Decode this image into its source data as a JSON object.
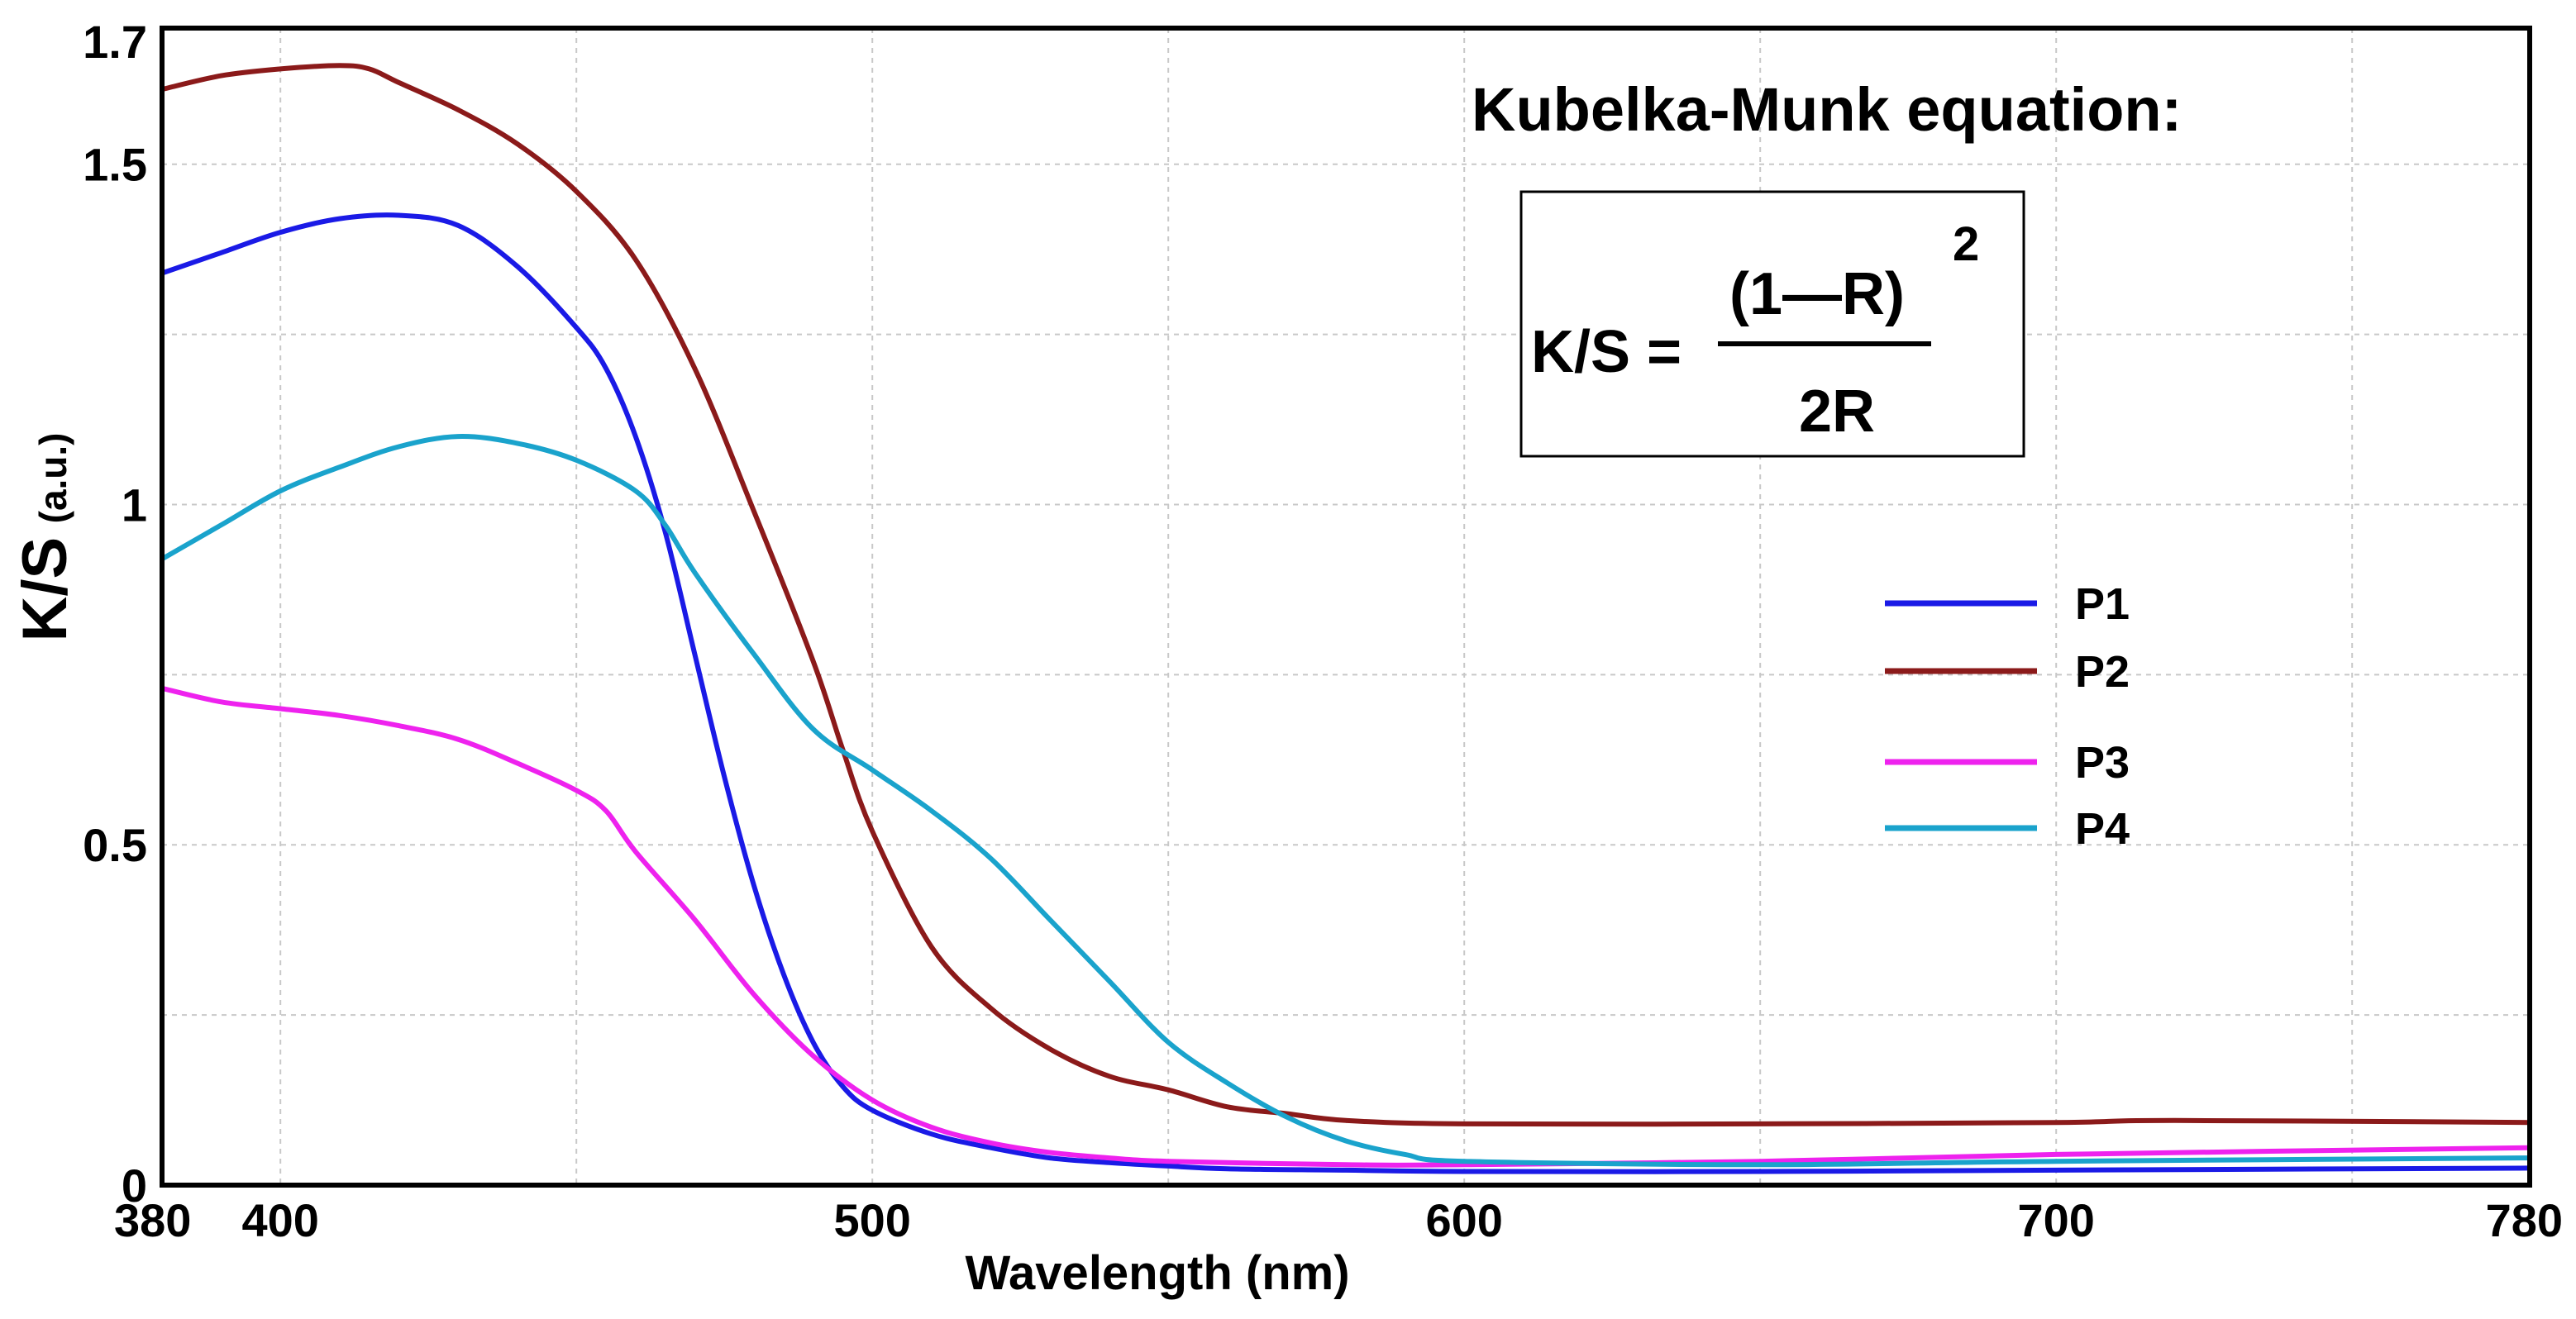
{
  "chart_data": {
    "type": "line",
    "xlabel": "Wavelength (nm)",
    "ylabel": "K/S",
    "ylabel_unit": "(a.u.)",
    "xlim": [
      380,
      780
    ],
    "ylim": [
      0,
      1.7
    ],
    "x_ticks": [
      380,
      400,
      500,
      600,
      700,
      780
    ],
    "y_ticks": [
      {
        "value": 0,
        "label": "0"
      },
      {
        "value": 0.5,
        "label": "0.5"
      },
      {
        "value": 1,
        "label": "1"
      },
      {
        "value": 1.5,
        "label": "1.5"
      },
      {
        "value": 1.7,
        "label": "1.7"
      }
    ],
    "grid": true,
    "legend_position": "right",
    "series": [
      {
        "name": "P1",
        "color": "#1a1ae6",
        "points": [
          [
            380,
            1.34
          ],
          [
            390,
            1.37
          ],
          [
            400,
            1.4
          ],
          [
            410,
            1.42
          ],
          [
            420,
            1.425
          ],
          [
            430,
            1.41
          ],
          [
            440,
            1.35
          ],
          [
            450,
            1.26
          ],
          [
            455,
            1.2
          ],
          [
            460,
            1.1
          ],
          [
            465,
            0.96
          ],
          [
            470,
            0.78
          ],
          [
            475,
            0.6
          ],
          [
            480,
            0.44
          ],
          [
            485,
            0.31
          ],
          [
            490,
            0.21
          ],
          [
            495,
            0.145
          ],
          [
            500,
            0.11
          ],
          [
            510,
            0.075
          ],
          [
            520,
            0.055
          ],
          [
            530,
            0.04
          ],
          [
            540,
            0.033
          ],
          [
            550,
            0.028
          ],
          [
            560,
            0.024
          ],
          [
            580,
            0.022
          ],
          [
            600,
            0.02
          ],
          [
            650,
            0.02
          ],
          [
            700,
            0.022
          ],
          [
            780,
            0.025
          ]
        ]
      },
      {
        "name": "P2",
        "color": "#8b1a1a",
        "points": [
          [
            380,
            1.61
          ],
          [
            390,
            1.63
          ],
          [
            400,
            1.64
          ],
          [
            410,
            1.645
          ],
          [
            415,
            1.64
          ],
          [
            420,
            1.62
          ],
          [
            430,
            1.58
          ],
          [
            440,
            1.53
          ],
          [
            450,
            1.46
          ],
          [
            460,
            1.36
          ],
          [
            470,
            1.2
          ],
          [
            480,
            0.99
          ],
          [
            490,
            0.77
          ],
          [
            495,
            0.64
          ],
          [
            500,
            0.52
          ],
          [
            510,
            0.35
          ],
          [
            520,
            0.26
          ],
          [
            530,
            0.2
          ],
          [
            540,
            0.16
          ],
          [
            550,
            0.14
          ],
          [
            560,
            0.115
          ],
          [
            570,
            0.105
          ],
          [
            580,
            0.095
          ],
          [
            600,
            0.09
          ],
          [
            650,
            0.09
          ],
          [
            700,
            0.092
          ],
          [
            720,
            0.095
          ],
          [
            780,
            0.092
          ]
        ]
      },
      {
        "name": "P3",
        "color": "#ee22ee",
        "points": [
          [
            380,
            0.73
          ],
          [
            390,
            0.71
          ],
          [
            400,
            0.7
          ],
          [
            410,
            0.69
          ],
          [
            420,
            0.675
          ],
          [
            430,
            0.655
          ],
          [
            440,
            0.62
          ],
          [
            450,
            0.58
          ],
          [
            455,
            0.55
          ],
          [
            460,
            0.49
          ],
          [
            470,
            0.39
          ],
          [
            480,
            0.28
          ],
          [
            490,
            0.19
          ],
          [
            500,
            0.125
          ],
          [
            510,
            0.085
          ],
          [
            520,
            0.062
          ],
          [
            530,
            0.048
          ],
          [
            540,
            0.04
          ],
          [
            550,
            0.035
          ],
          [
            580,
            0.03
          ],
          [
            600,
            0.03
          ],
          [
            650,
            0.035
          ],
          [
            700,
            0.045
          ],
          [
            780,
            0.055
          ]
        ]
      },
      {
        "name": "P4",
        "color": "#1aa3cc",
        "points": [
          [
            380,
            0.92
          ],
          [
            390,
            0.97
          ],
          [
            400,
            1.02
          ],
          [
            410,
            1.055
          ],
          [
            420,
            1.085
          ],
          [
            430,
            1.1
          ],
          [
            440,
            1.09
          ],
          [
            450,
            1.065
          ],
          [
            460,
            1.02
          ],
          [
            465,
            0.97
          ],
          [
            470,
            0.9
          ],
          [
            480,
            0.78
          ],
          [
            490,
            0.67
          ],
          [
            500,
            0.61
          ],
          [
            510,
            0.55
          ],
          [
            520,
            0.48
          ],
          [
            530,
            0.39
          ],
          [
            540,
            0.3
          ],
          [
            550,
            0.21
          ],
          [
            560,
            0.15
          ],
          [
            570,
            0.1
          ],
          [
            580,
            0.065
          ],
          [
            590,
            0.045
          ],
          [
            600,
            0.035
          ],
          [
            650,
            0.03
          ],
          [
            700,
            0.035
          ],
          [
            780,
            0.04
          ]
        ]
      }
    ],
    "annotation": {
      "title": "Kubelka-Munk equation:",
      "lhs": "K/S =",
      "numerator": "(1—R)",
      "exponent": "2",
      "denominator": "2R"
    }
  }
}
